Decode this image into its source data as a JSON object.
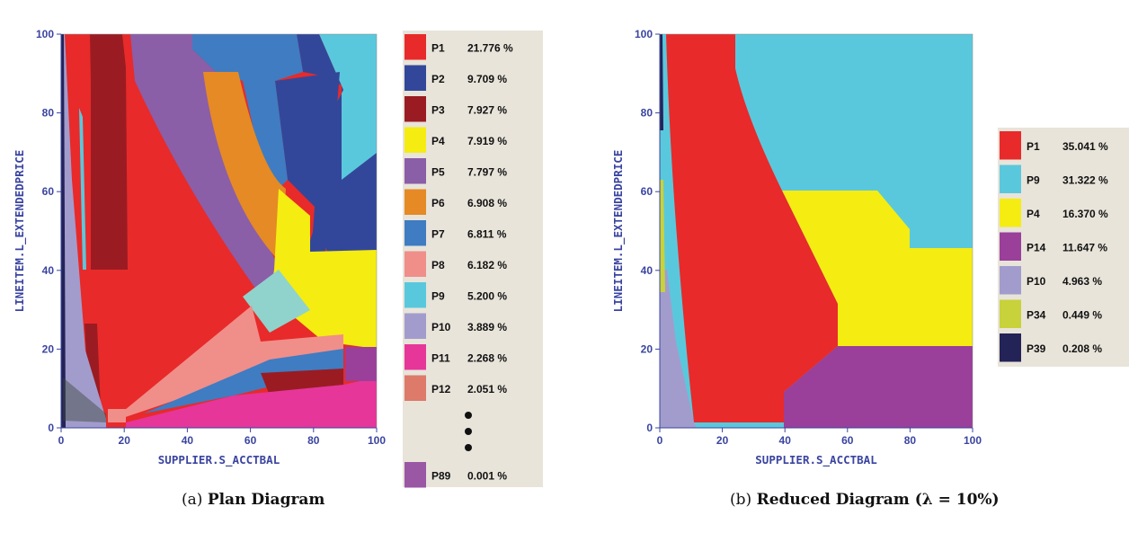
{
  "chart_data": [
    {
      "type": "heatmap",
      "xlabel": "SUPPLIER.S_ACCTBAL",
      "ylabel": "LINEITEM.L_EXTENDEDPRICE",
      "xlim": [
        0,
        100
      ],
      "ylim": [
        0,
        100
      ],
      "xticks": [
        "0",
        "20",
        "40",
        "60",
        "80",
        "100"
      ],
      "yticks": [
        "0",
        "20",
        "40",
        "60",
        "80",
        "100"
      ],
      "caption_prefix": "(a)",
      "caption_title": "Plan Diagram",
      "legend_ellipsis": true,
      "legend": [
        {
          "plan": "P1",
          "percent": "21.776 %",
          "color": "#e82a2a"
        },
        {
          "plan": "P2",
          "percent": "9.709 %",
          "color": "#33479a"
        },
        {
          "plan": "P3",
          "percent": "7.927 %",
          "color": "#9a1c22"
        },
        {
          "plan": "P4",
          "percent": "7.919 %",
          "color": "#f5ec12"
        },
        {
          "plan": "P5",
          "percent": "7.797 %",
          "color": "#8b5ea8"
        },
        {
          "plan": "P6",
          "percent": "6.908 %",
          "color": "#e58a24"
        },
        {
          "plan": "P7",
          "percent": "6.811 %",
          "color": "#3f7cc2"
        },
        {
          "plan": "P8",
          "percent": "6.182 %",
          "color": "#f08e8a"
        },
        {
          "plan": "P9",
          "percent": "5.200 %",
          "color": "#5ac8dc"
        },
        {
          "plan": "P10",
          "percent": "3.889 %",
          "color": "#a29ccd"
        },
        {
          "plan": "P11",
          "percent": "2.268 %",
          "color": "#e6369a"
        },
        {
          "plan": "P12",
          "percent": "2.051 %",
          "color": "#dd7a6a"
        },
        {
          "plan": "P89",
          "percent": "0.001 %",
          "color": "#9a57a4"
        }
      ]
    },
    {
      "type": "heatmap",
      "xlabel": "SUPPLIER.S_ACCTBAL",
      "ylabel": "LINEITEM.L_EXTENDEDPRICE",
      "xlim": [
        0,
        100
      ],
      "ylim": [
        0,
        100
      ],
      "xticks": [
        "0",
        "20",
        "40",
        "60",
        "80",
        "100"
      ],
      "yticks": [
        "0",
        "20",
        "40",
        "60",
        "80",
        "100"
      ],
      "caption_prefix": "(b)",
      "caption_title": "Reduced Diagram (λ = 10%)",
      "legend": [
        {
          "plan": "P1",
          "percent": "35.041 %",
          "color": "#e82a2a"
        },
        {
          "plan": "P9",
          "percent": "31.322 %",
          "color": "#5ac8dc"
        },
        {
          "plan": "P4",
          "percent": "16.370 %",
          "color": "#f5ec12"
        },
        {
          "plan": "P14",
          "percent": "11.647 %",
          "color": "#9a3f9a"
        },
        {
          "plan": "P10",
          "percent": "4.963 %",
          "color": "#a29ccd"
        },
        {
          "plan": "P34",
          "percent": "0.449 %",
          "color": "#c8d23a"
        },
        {
          "plan": "P39",
          "percent": "0.208 %",
          "color": "#232358"
        }
      ]
    }
  ]
}
